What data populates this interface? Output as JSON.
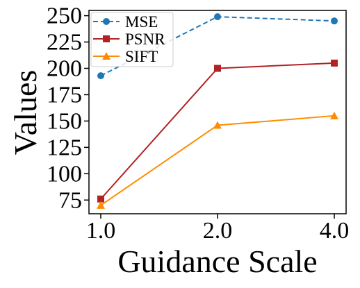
{
  "chart_data": {
    "type": "line",
    "title": "",
    "xlabel": "Guidance Scale",
    "ylabel": "Values",
    "categories": [
      "1.0",
      "2.0",
      "4.0"
    ],
    "yticks": [
      "75",
      "100",
      "125",
      "150",
      "175",
      "200",
      "225",
      "250"
    ],
    "ylim": [
      62,
      255
    ],
    "grid": false,
    "legend_position": "top-left",
    "series": [
      {
        "name": "MSE",
        "values": [
          193,
          249,
          245
        ],
        "color": "#1f77b4",
        "marker": "circle",
        "line_style": "dashed"
      },
      {
        "name": "PSNR",
        "values": [
          76,
          200,
          205
        ],
        "color": "#b22222",
        "marker": "square",
        "line_style": "solid"
      },
      {
        "name": "SIFT",
        "values": [
          70,
          146,
          155
        ],
        "color": "#ff8c00",
        "marker": "triangle",
        "line_style": "solid"
      }
    ]
  }
}
